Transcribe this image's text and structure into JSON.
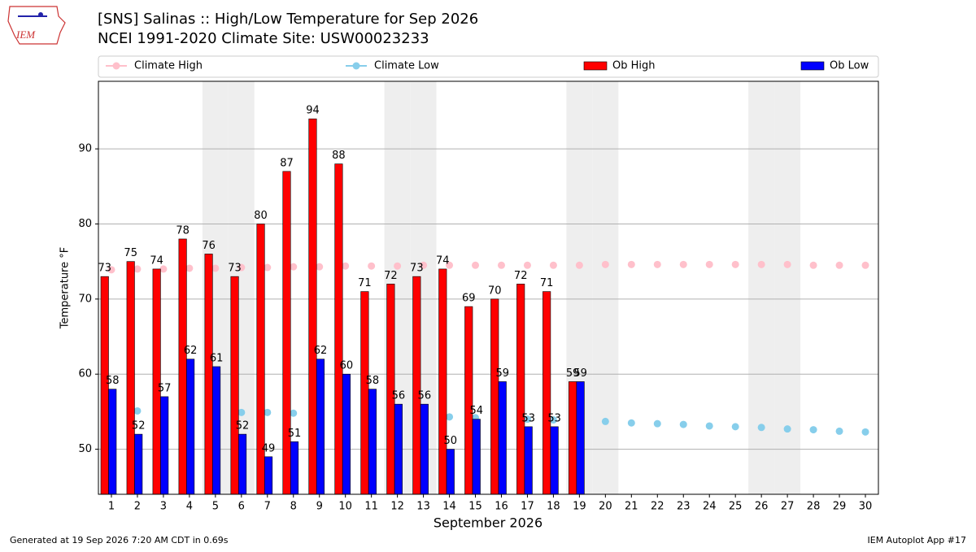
{
  "chart_data": {
    "type": "bar_line",
    "title": "[SNS] Salinas :: High/Low Temperature for Sep 2026",
    "subtitle": "NCEI 1991-2020 Climate Site: USW00023233",
    "logo_text": "IEM",
    "y_label": "Temperature °F",
    "x_label": "September 2026",
    "footer_left": "Generated at 19 Sep 2026 7:20 AM CDT in 0.69s",
    "footer_right": "IEM Autoplot App #17",
    "categories": [
      "1",
      "2",
      "3",
      "4",
      "5",
      "6",
      "7",
      "8",
      "9",
      "10",
      "11",
      "12",
      "13",
      "14",
      "15",
      "16",
      "17",
      "18",
      "19",
      "20",
      "21",
      "22",
      "23",
      "24",
      "25",
      "26",
      "27",
      "28",
      "29",
      "30"
    ],
    "shaded_categories": [
      4,
      5,
      11,
      12,
      18,
      19,
      25,
      26
    ],
    "ylim": [
      44,
      99
    ],
    "yticks": [
      50,
      60,
      70,
      80,
      90
    ],
    "grid": true,
    "series": [
      {
        "name": "Climate High",
        "kind": "line",
        "color": "#ffc0cb",
        "values": [
          73.9,
          74.0,
          74.0,
          74.1,
          74.1,
          74.2,
          74.2,
          74.3,
          74.3,
          74.4,
          74.4,
          74.4,
          74.5,
          74.5,
          74.5,
          74.5,
          74.5,
          74.5,
          74.5,
          74.6,
          74.6,
          74.6,
          74.6,
          74.6,
          74.6,
          74.6,
          74.6,
          74.5,
          74.5,
          74.5
        ]
      },
      {
        "name": "Climate Low",
        "kind": "line",
        "color": "#87ceeb",
        "values": [
          55.2,
          55.1,
          55.1,
          55.0,
          55.0,
          54.9,
          54.9,
          54.8,
          54.7,
          54.7,
          54.6,
          54.5,
          54.4,
          54.3,
          54.2,
          54.1,
          54.0,
          53.9,
          53.8,
          53.7,
          53.5,
          53.4,
          53.3,
          53.1,
          53.0,
          52.9,
          52.7,
          52.6,
          52.4,
          52.3
        ]
      },
      {
        "name": "Ob High",
        "kind": "bar",
        "color": "#ff0000",
        "values": [
          73,
          75,
          74,
          78,
          76,
          73,
          80,
          87,
          94,
          88,
          71,
          72,
          73,
          74,
          69,
          70,
          72,
          71,
          59,
          null,
          null,
          null,
          null,
          null,
          null,
          null,
          null,
          null,
          null,
          null
        ]
      },
      {
        "name": "Ob Low",
        "kind": "bar",
        "color": "#0000ff",
        "values": [
          58,
          52,
          57,
          62,
          61,
          52,
          49,
          51,
          62,
          60,
          58,
          56,
          56,
          50,
          54,
          59,
          53,
          53,
          59,
          null,
          null,
          null,
          null,
          null,
          null,
          null,
          null,
          null,
          null,
          null
        ]
      }
    ]
  }
}
